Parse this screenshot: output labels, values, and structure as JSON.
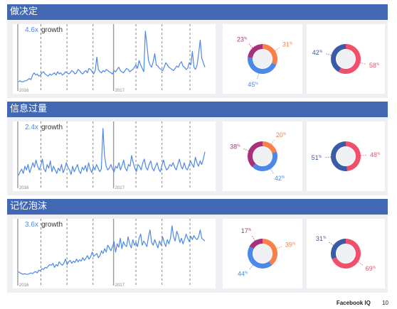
{
  "colors": {
    "header_bg": "#4268b3",
    "line": "#4c88e8",
    "growth_num": "#4c88e8",
    "donut_blue": "#4c88e8",
    "donut_orange": "#fb7f48",
    "donut_purple": "#a8327a",
    "donut_navy": "#3a5ba8",
    "donut_red": "#f0506c"
  },
  "footer": {
    "brand": "Facebook IQ",
    "page": "10"
  },
  "chart_data": [
    {
      "type": "line",
      "section_title": "做决定",
      "growth_value": "4.6x",
      "growth_label": "growth",
      "x_ticks": [
        "2016",
        "2017"
      ],
      "values": [
        3,
        4,
        3,
        3,
        4,
        4,
        5,
        6,
        5,
        9,
        11,
        9,
        10,
        8,
        9,
        11,
        12,
        10,
        9,
        8,
        10,
        9,
        10,
        11,
        9,
        12,
        10,
        11,
        9,
        10,
        12,
        11,
        10,
        11,
        13,
        12,
        10,
        11,
        14,
        13,
        11,
        10,
        12,
        13,
        11,
        15,
        14,
        12,
        10,
        13,
        25,
        14,
        12,
        11,
        13,
        12,
        14,
        13,
        12,
        11,
        10,
        13,
        12,
        14,
        16,
        13,
        12,
        11,
        13,
        15,
        14,
        12,
        13,
        14,
        16,
        18,
        15,
        22,
        18,
        15,
        12,
        48,
        36,
        22,
        18,
        16,
        21,
        28,
        18,
        17,
        15,
        14,
        13,
        16,
        20,
        18,
        16,
        15,
        14,
        13,
        15,
        17,
        16,
        19,
        21,
        17,
        16,
        14,
        15,
        20,
        18,
        30,
        16,
        14,
        18,
        28,
        40,
        24,
        20,
        16
      ]
    },
    {
      "type": "donut",
      "slices": [
        {
          "label": "31",
          "unit": "%",
          "value": 31,
          "color": "#fb7f48"
        },
        {
          "label": "45",
          "unit": "%",
          "value": 45,
          "color": "#4c88e8"
        },
        {
          "label": "23",
          "unit": "%",
          "value": 23,
          "color": "#a8327a"
        }
      ]
    },
    {
      "type": "donut",
      "slices": [
        {
          "label": "58",
          "unit": "%",
          "value": 58,
          "color": "#f0506c"
        },
        {
          "label": "42",
          "unit": "%",
          "value": 42,
          "color": "#3a5ba8"
        }
      ]
    },
    {
      "type": "line",
      "section_title": "信息过量",
      "growth_value": "2.4x",
      "growth_label": "growth",
      "x_ticks": [
        "2016",
        "2017"
      ],
      "values": [
        8,
        12,
        15,
        10,
        18,
        14,
        20,
        11,
        16,
        22,
        17,
        25,
        18,
        14,
        19,
        26,
        15,
        12,
        20,
        16,
        24,
        12,
        18,
        14,
        10,
        16,
        13,
        20,
        11,
        15,
        22,
        17,
        14,
        9,
        18,
        12,
        16,
        20,
        13,
        10,
        17,
        14,
        19,
        12,
        22,
        15,
        11,
        18,
        14,
        20,
        16,
        12,
        15,
        60,
        30,
        18,
        14,
        16,
        20,
        15,
        12,
        18,
        16,
        22,
        14,
        19,
        25,
        16,
        13,
        20,
        18,
        30,
        22,
        16,
        12,
        20,
        18,
        14,
        22,
        26,
        17,
        14,
        20,
        24,
        16,
        13,
        18,
        22,
        15,
        12,
        19,
        25,
        18,
        14,
        16,
        20,
        18,
        22,
        17,
        14,
        20,
        26,
        18,
        15,
        22,
        16,
        14,
        19,
        24,
        20,
        17,
        28,
        22,
        18,
        24,
        20,
        26,
        34
      ]
    },
    {
      "type": "donut",
      "slices": [
        {
          "label": "20",
          "unit": "%",
          "value": 20,
          "color": "#fb7f48"
        },
        {
          "label": "42",
          "unit": "%",
          "value": 42,
          "color": "#4c88e8"
        },
        {
          "label": "38",
          "unit": "%",
          "value": 38,
          "color": "#a8327a"
        }
      ]
    },
    {
      "type": "donut",
      "slices": [
        {
          "label": "48",
          "unit": "%",
          "value": 48,
          "color": "#f0506c"
        },
        {
          "label": "51",
          "unit": "%",
          "value": 51,
          "color": "#3a5ba8"
        }
      ]
    },
    {
      "type": "line",
      "section_title": "记忆泡沫",
      "growth_value": "3.6x",
      "growth_label": "growth",
      "x_ticks": [
        "2016",
        "2017"
      ],
      "values": [
        12,
        10,
        9,
        8,
        9,
        8,
        8,
        9,
        10,
        9,
        11,
        12,
        10,
        14,
        13,
        16,
        15,
        18,
        17,
        20,
        22,
        21,
        24,
        18,
        22,
        20,
        26,
        23,
        21,
        24,
        30,
        22,
        26,
        28,
        24,
        27,
        25,
        30,
        26,
        29,
        27,
        32,
        28,
        31,
        35,
        30,
        33,
        40,
        34,
        36,
        38,
        32,
        35,
        42,
        38,
        45,
        40,
        50,
        46,
        42,
        48,
        55,
        40,
        52,
        47,
        60,
        45,
        55,
        50,
        48,
        62,
        52,
        46,
        58,
        50,
        54,
        48,
        60,
        66,
        50,
        56,
        52,
        48,
        62,
        72,
        54,
        50,
        58,
        52,
        46,
        56,
        50,
        62,
        54,
        48,
        58,
        52,
        60,
        78,
        62,
        56,
        70,
        64,
        54,
        60,
        52,
        58,
        66,
        60,
        55,
        63,
        58,
        64,
        60,
        58,
        62,
        72,
        60,
        58,
        56
      ]
    },
    {
      "type": "donut",
      "slices": [
        {
          "label": "39",
          "unit": "%",
          "value": 39,
          "color": "#fb7f48"
        },
        {
          "label": "44",
          "unit": "%",
          "value": 44,
          "color": "#4c88e8"
        },
        {
          "label": "17",
          "unit": "%",
          "value": 17,
          "color": "#a8327a"
        }
      ]
    },
    {
      "type": "donut",
      "slices": [
        {
          "label": "69",
          "unit": "%",
          "value": 69,
          "color": "#f0506c"
        },
        {
          "label": "31",
          "unit": "%",
          "value": 31,
          "color": "#3a5ba8"
        }
      ]
    }
  ]
}
